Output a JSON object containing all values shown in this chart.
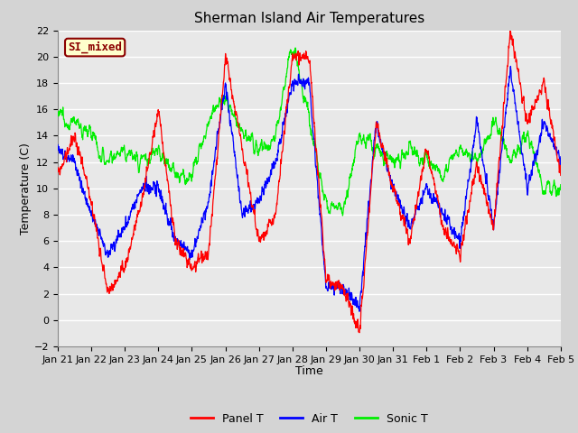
{
  "title": "Sherman Island Air Temperatures",
  "xlabel": "Time",
  "ylabel": "Temperature (C)",
  "ylim": [
    -2,
    22
  ],
  "yticks": [
    -2,
    0,
    2,
    4,
    6,
    8,
    10,
    12,
    14,
    16,
    18,
    20,
    22
  ],
  "xtick_labels": [
    "Jan 21",
    "Jan 22",
    "Jan 23",
    "Jan 24",
    "Jan 25",
    "Jan 26",
    "Jan 27",
    "Jan 28",
    "Jan 29",
    "Jan 30",
    "Jan 31",
    "Feb 1",
    "Feb 2",
    "Feb 3",
    "Feb 4",
    "Feb 5"
  ],
  "line_colors": {
    "panel": "red",
    "air": "blue",
    "sonic": "#00ee00"
  },
  "legend_labels": [
    "Panel T",
    "Air T",
    "Sonic T"
  ],
  "label_box_text": "SI_mixed",
  "label_box_facecolor": "#ffffcc",
  "label_box_edgecolor": "#8b0000",
  "label_box_textcolor": "#8b0000",
  "fig_facecolor": "#d4d4d4",
  "ax_facecolor": "#e8e8e8",
  "grid_color": "white",
  "title_fontsize": 11,
  "axis_label_fontsize": 9,
  "tick_fontsize": 8
}
